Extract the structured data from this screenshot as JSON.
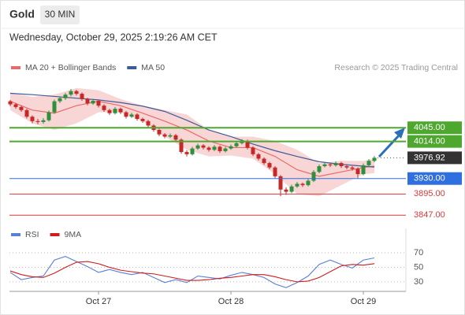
{
  "header": {
    "title": "Gold",
    "interval": "30 MIN",
    "timestamp": "Wednesday, October 29, 2025 2:19:26 AM CET"
  },
  "chart_data": [
    {
      "type": "candlestick",
      "credit": "Research © 2025 Trading Central",
      "categories": [
        null,
        null,
        null,
        null,
        null,
        null,
        null,
        null,
        null,
        null,
        null,
        null,
        null,
        null,
        null,
        null,
        "Oct 27",
        null,
        null,
        null,
        null,
        null,
        null,
        null,
        null,
        null,
        null,
        null,
        null,
        null,
        null,
        null,
        null,
        null,
        null,
        null,
        null,
        null,
        null,
        null,
        "Oct 28",
        null,
        null,
        null,
        null,
        null,
        null,
        null,
        null,
        null,
        null,
        null,
        null,
        null,
        null,
        null,
        null,
        null,
        null,
        null,
        null,
        null,
        null,
        null,
        "Oct 29",
        null,
        null
      ],
      "open": [
        4105,
        4098,
        4092,
        4085,
        4070,
        4060,
        4058,
        4062,
        4080,
        4105,
        4112,
        4120,
        4128,
        4122,
        4110,
        4100,
        4106,
        4095,
        4085,
        4078,
        4088,
        4080,
        4070,
        4075,
        4065,
        4060,
        4050,
        4040,
        4030,
        4025,
        4028,
        4018,
        3990,
        3985,
        3998,
        4005,
        4000,
        3995,
        4002,
        3992,
        3998,
        4003,
        4010,
        4015,
        4000,
        3985,
        3975,
        3965,
        3955,
        3935,
        3905,
        3900,
        3912,
        3918,
        3915,
        3925,
        3945,
        3958,
        3962,
        3960,
        3965,
        3958,
        3955,
        3952,
        3940,
        3960,
        3970
      ],
      "high": [
        4108,
        4101,
        4095,
        4088,
        4073,
        4065,
        4067,
        4084,
        4109,
        4116,
        4124,
        4133,
        4131,
        4125,
        4113,
        4110,
        4109,
        4098,
        4088,
        4092,
        4091,
        4083,
        4079,
        4078,
        4068,
        4063,
        4053,
        4043,
        4033,
        4032,
        4031,
        4021,
        3994,
        4002,
        4009,
        4008,
        4003,
        4006,
        4005,
        4002,
        4007,
        4014,
        4019,
        4018,
        4003,
        3988,
        3978,
        3968,
        3958,
        3938,
        3910,
        3916,
        3922,
        3921,
        3929,
        3949,
        3962,
        3966,
        3965,
        3969,
        3968,
        3961,
        3958,
        3955,
        3964,
        3974,
        3981
      ],
      "low": [
        4094,
        4088,
        4081,
        4066,
        4055,
        4053,
        4054,
        4059,
        4077,
        4101,
        4108,
        4116,
        4118,
        4106,
        4096,
        4097,
        4091,
        4081,
        4074,
        4075,
        4076,
        4066,
        4067,
        4061,
        4056,
        4046,
        4036,
        4026,
        4021,
        4022,
        4014,
        3986,
        3980,
        3982,
        3995,
        3996,
        3991,
        3992,
        3988,
        3989,
        3995,
        4000,
        4007,
        3996,
        3981,
        3971,
        3961,
        3951,
        3931,
        3890,
        3893,
        3897,
        3909,
        3911,
        3912,
        3922,
        3942,
        3955,
        3956,
        3957,
        3954,
        3951,
        3948,
        3930,
        3937,
        3957,
        3967
      ],
      "close": [
        4098,
        4092,
        4085,
        4070,
        4060,
        4058,
        4062,
        4080,
        4105,
        4112,
        4120,
        4128,
        4122,
        4110,
        4100,
        4106,
        4095,
        4085,
        4078,
        4088,
        4080,
        4070,
        4075,
        4065,
        4060,
        4050,
        4040,
        4030,
        4025,
        4028,
        4018,
        3990,
        3985,
        3998,
        4005,
        4000,
        3995,
        4002,
        3992,
        3998,
        4003,
        4010,
        4015,
        4000,
        3985,
        3975,
        3965,
        3955,
        3935,
        3905,
        3900,
        3912,
        3918,
        3915,
        3925,
        3945,
        3958,
        3962,
        3960,
        3965,
        3958,
        3955,
        3952,
        3940,
        3960,
        3970,
        3976.92
      ],
      "up_color": "#2f8f3a",
      "down_color": "#c62828",
      "ylim": [
        3826,
        4156
      ],
      "series": [
        {
          "name": "MA 20 + Bollinger Bands",
          "color": "#e86a6a",
          "band_color": "#f4b4b4",
          "x": [
            0,
            4,
            8,
            12,
            16,
            20,
            24,
            28,
            32,
            36,
            40,
            44,
            48,
            52,
            56,
            60,
            64,
            66
          ],
          "values": [
            4105,
            4085,
            4078,
            4095,
            4105,
            4095,
            4078,
            4060,
            4040,
            4015,
            4000,
            4000,
            3980,
            3950,
            3935,
            3945,
            3955,
            3958
          ],
          "upper": [
            4125,
            4115,
            4120,
            4135,
            4130,
            4110,
            4095,
            4085,
            4075,
            4040,
            4025,
            4025,
            4015,
            3995,
            3965,
            3970,
            3970,
            3975
          ],
          "lower": [
            4085,
            4055,
            4040,
            4055,
            4080,
            4080,
            4060,
            4025,
            3995,
            3980,
            3982,
            3975,
            3940,
            3895,
            3890,
            3915,
            3940,
            3942
          ]
        },
        {
          "name": "MA 50",
          "color": "#3d5a99",
          "x": [
            0,
            4,
            8,
            12,
            16,
            20,
            24,
            28,
            32,
            36,
            40,
            44,
            48,
            52,
            56,
            60,
            64,
            66
          ],
          "values": [
            4123,
            4120,
            4116,
            4112,
            4108,
            4102,
            4094,
            4082,
            4062,
            4040,
            4025,
            4008,
            3993,
            3980,
            3968,
            3962,
            3958,
            3956
          ]
        }
      ],
      "levels": [
        {
          "value": 4045,
          "label": "4045.00",
          "color": "#4ea72e",
          "boxed": true
        },
        {
          "value": 4014,
          "label": "4014.00",
          "color": "#4ea72e",
          "boxed": true
        },
        {
          "value": 3930,
          "label": "3930.00",
          "color": "#2f6fe0",
          "boxed": true
        },
        {
          "value": 3895,
          "label": "3895.00",
          "color": "#d63a3a",
          "boxed": false
        },
        {
          "value": 3847,
          "label": "3847.00",
          "color": "#d63a3a",
          "boxed": false
        }
      ],
      "last_price": {
        "value": 3976.92,
        "label": "3976.92",
        "color": "#333333"
      }
    },
    {
      "type": "line",
      "ylim": [
        19,
        82
      ],
      "yticks": [
        30,
        50,
        70
      ],
      "grid": true,
      "series": [
        {
          "name": "RSI",
          "color": "#5b7fd4",
          "x": [
            0,
            2,
            4,
            6,
            8,
            10,
            12,
            14,
            16,
            18,
            20,
            22,
            24,
            26,
            28,
            30,
            32,
            34,
            36,
            38,
            40,
            42,
            44,
            46,
            48,
            50,
            52,
            54,
            56,
            58,
            60,
            62,
            64,
            66
          ],
          "values": [
            43,
            33,
            36,
            38,
            60,
            65,
            58,
            51,
            43,
            47,
            43,
            40,
            43,
            36,
            29,
            33,
            29,
            38,
            36,
            34,
            39,
            43,
            40,
            36,
            27,
            22,
            29,
            38,
            54,
            60,
            54,
            49,
            60,
            63
          ]
        },
        {
          "name": "9MA",
          "color": "#d01c1c",
          "x": [
            0,
            2,
            4,
            6,
            8,
            10,
            12,
            14,
            16,
            18,
            20,
            22,
            24,
            26,
            28,
            30,
            32,
            34,
            36,
            38,
            40,
            42,
            44,
            46,
            48,
            50,
            52,
            54,
            56,
            58,
            60,
            62,
            64,
            66
          ],
          "values": [
            45,
            40,
            37,
            36,
            42,
            50,
            57,
            58,
            55,
            50,
            46,
            44,
            42,
            41,
            38,
            35,
            32,
            32,
            33,
            35,
            36,
            38,
            40,
            40,
            37,
            33,
            30,
            31,
            36,
            44,
            52,
            54,
            53,
            55
          ]
        }
      ]
    }
  ]
}
